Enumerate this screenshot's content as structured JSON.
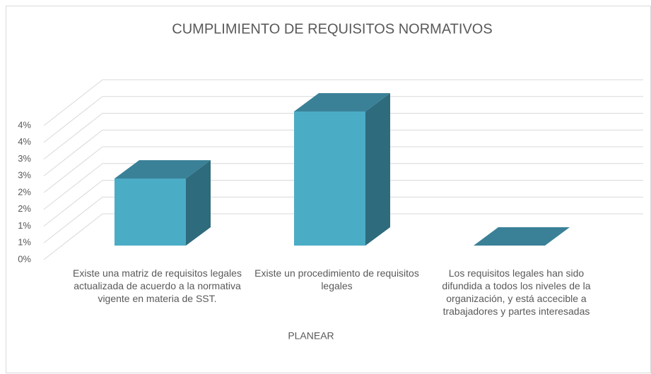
{
  "chart_data": {
    "type": "bar3d",
    "title": "CUMPLIMIENTO DE REQUISITOS NORMATIVOS",
    "x_label": "PLANEAR",
    "categories": [
      "Existe una matriz de requisitos legales actualizada de acuerdo a la normativa vigente en materia de SST.",
      "Existe un procedimiento de requisitos legales",
      "Los requisitos legales han sido difundida a todos los niveles de la organización, y está accecible a trabajadores y partes interesadas"
    ],
    "values": [
      2,
      4,
      0
    ],
    "color": "#4bacc6",
    "ylim": [
      0,
      4
    ],
    "yticks": [
      {
        "value": 0,
        "label": "0%"
      },
      {
        "value": 0.5,
        "label": "1%"
      },
      {
        "value": 1,
        "label": "1%"
      },
      {
        "value": 1.5,
        "label": "2%"
      },
      {
        "value": 2,
        "label": "2%"
      },
      {
        "value": 2.5,
        "label": "3%"
      },
      {
        "value": 3,
        "label": "3%"
      },
      {
        "value": 3.5,
        "label": "4%"
      },
      {
        "value": 4,
        "label": "4%"
      }
    ],
    "grid": true
  }
}
